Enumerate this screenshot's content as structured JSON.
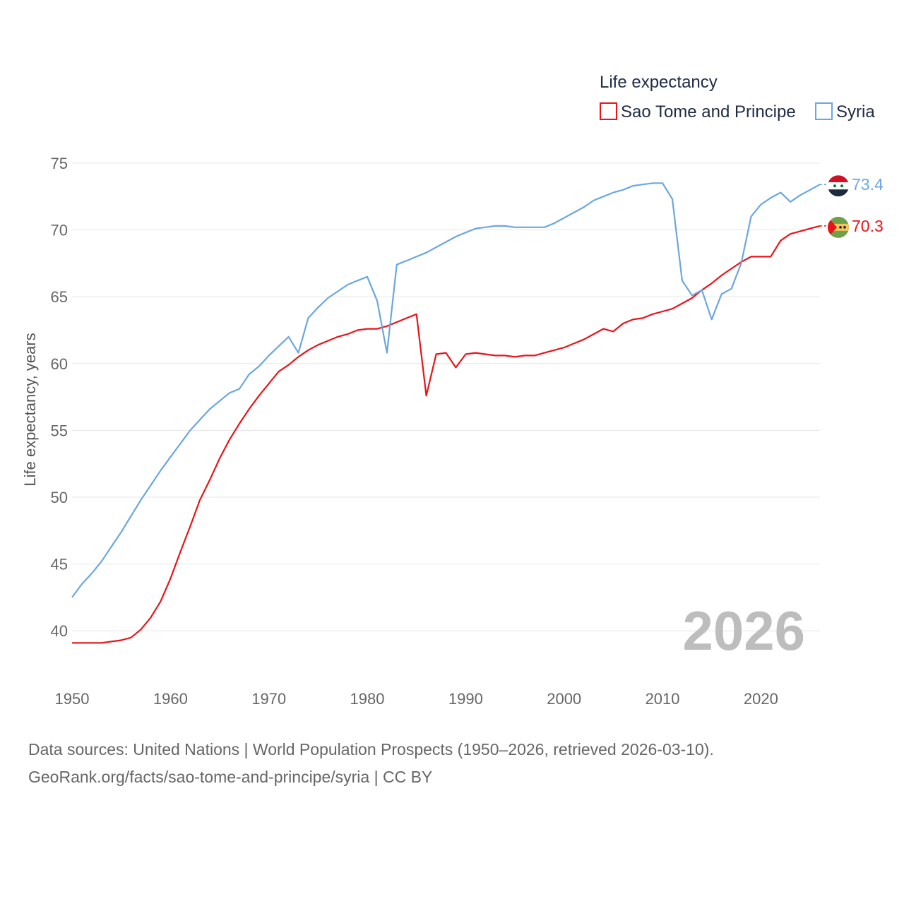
{
  "chart_data": {
    "type": "line",
    "legend_title": "Life expectancy",
    "ylabel": "Life expectancy, years",
    "xlim": [
      1950,
      2026
    ],
    "ylim": [
      37,
      76
    ],
    "y_ticks": [
      40,
      45,
      50,
      55,
      60,
      65,
      70,
      75
    ],
    "x_ticks": [
      1950,
      1960,
      1970,
      1980,
      1990,
      2000,
      2010,
      2020
    ],
    "year_label": "2026",
    "legend_placement": "top-right",
    "series": [
      {
        "name": "Sao Tome and Principe",
        "color": "#e8141a",
        "end_label": "70.3",
        "flag": "sao-tome-and-principe",
        "x": [
          1950,
          1951,
          1952,
          1953,
          1954,
          1955,
          1956,
          1957,
          1958,
          1959,
          1960,
          1961,
          1962,
          1963,
          1964,
          1965,
          1966,
          1967,
          1968,
          1969,
          1970,
          1971,
          1972,
          1973,
          1974,
          1975,
          1976,
          1977,
          1978,
          1979,
          1980,
          1981,
          1982,
          1983,
          1984,
          1985,
          1986,
          1987,
          1988,
          1989,
          1990,
          1991,
          1992,
          1993,
          1994,
          1995,
          1996,
          1997,
          1998,
          1999,
          2000,
          2001,
          2002,
          2003,
          2004,
          2005,
          2006,
          2007,
          2008,
          2009,
          2010,
          2011,
          2012,
          2013,
          2014,
          2015,
          2016,
          2017,
          2018,
          2019,
          2020,
          2021,
          2022,
          2023,
          2024,
          2025,
          2026
        ],
        "values": [
          39.1,
          39.1,
          39.1,
          39.1,
          39.2,
          39.3,
          39.5,
          40.1,
          41.0,
          42.2,
          43.9,
          45.9,
          47.8,
          49.8,
          51.3,
          52.9,
          54.3,
          55.5,
          56.6,
          57.6,
          58.5,
          59.4,
          59.9,
          60.5,
          61.0,
          61.4,
          61.7,
          62.0,
          62.2,
          62.5,
          62.6,
          62.6,
          62.8,
          63.1,
          63.4,
          63.7,
          57.6,
          60.7,
          60.8,
          59.7,
          60.7,
          60.8,
          60.7,
          60.6,
          60.6,
          60.5,
          60.6,
          60.6,
          60.8,
          61.0,
          61.2,
          61.5,
          61.8,
          62.2,
          62.6,
          62.4,
          63.0,
          63.3,
          63.4,
          63.7,
          63.9,
          64.1,
          64.5,
          64.9,
          65.5,
          66.0,
          66.6,
          67.1,
          67.6,
          68.0,
          68.0,
          68.0,
          69.2,
          69.7,
          69.9,
          70.1,
          70.3
        ]
      },
      {
        "name": "Syria",
        "color": "#6aa7e0",
        "end_label": "73.4",
        "flag": "syria",
        "x": [
          1950,
          1951,
          1952,
          1953,
          1954,
          1955,
          1956,
          1957,
          1958,
          1959,
          1960,
          1961,
          1962,
          1963,
          1964,
          1965,
          1966,
          1967,
          1968,
          1969,
          1970,
          1971,
          1972,
          1973,
          1974,
          1975,
          1976,
          1977,
          1978,
          1979,
          1980,
          1981,
          1982,
          1983,
          1984,
          1985,
          1986,
          1987,
          1988,
          1989,
          1990,
          1991,
          1992,
          1993,
          1994,
          1995,
          1996,
          1997,
          1998,
          1999,
          2000,
          2001,
          2002,
          2003,
          2004,
          2005,
          2006,
          2007,
          2008,
          2009,
          2010,
          2011,
          2012,
          2013,
          2014,
          2015,
          2016,
          2017,
          2018,
          2019,
          2020,
          2021,
          2022,
          2023,
          2024,
          2025,
          2026
        ],
        "values": [
          42.5,
          43.5,
          44.3,
          45.2,
          46.3,
          47.4,
          48.6,
          49.8,
          50.9,
          52.0,
          53.0,
          54.0,
          55.0,
          55.8,
          56.6,
          57.2,
          57.8,
          58.1,
          59.2,
          59.8,
          60.6,
          61.3,
          62.0,
          60.8,
          63.4,
          64.2,
          64.9,
          65.4,
          65.9,
          66.2,
          66.5,
          64.7,
          60.8,
          67.4,
          67.7,
          68.0,
          68.3,
          68.7,
          69.1,
          69.5,
          69.8,
          70.1,
          70.2,
          70.3,
          70.3,
          70.2,
          70.2,
          70.2,
          70.2,
          70.5,
          70.9,
          71.3,
          71.7,
          72.2,
          72.5,
          72.8,
          73.0,
          73.3,
          73.4,
          73.5,
          73.5,
          72.3,
          66.2,
          65.1,
          65.5,
          63.3,
          65.2,
          65.6,
          67.5,
          71.0,
          71.9,
          72.4,
          72.8,
          72.1,
          72.6,
          73.0,
          73.4
        ]
      }
    ]
  },
  "source": {
    "line1": "Data sources: United Nations | World Population Prospects (1950–2026, retrieved 2026-03-10).",
    "line2": "GeoRank.org/facts/sao-tome-and-principe/syria | CC BY"
  }
}
